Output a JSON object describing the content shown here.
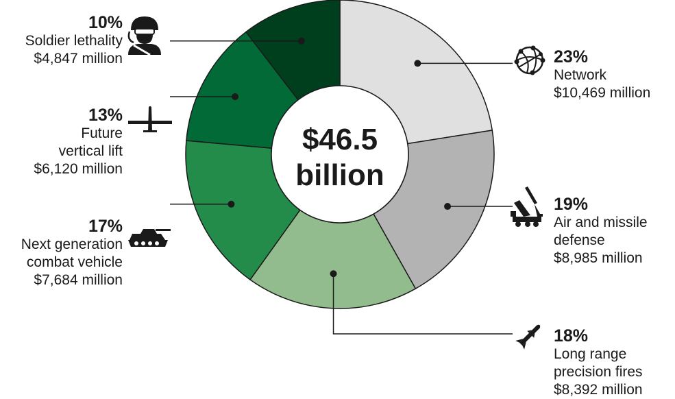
{
  "chart_data": {
    "type": "pie",
    "donut": true,
    "center_label": {
      "value": "$46.5",
      "unit": "billion"
    },
    "colors": [
      "#e0e0e0",
      "#b3b3b3",
      "#93bc8e",
      "#238c4a",
      "#026a36",
      "#003f1e"
    ],
    "series": [
      {
        "name": "Network",
        "percent": 23,
        "pct_label": "23%",
        "amount_millions": 10469,
        "amount_label": "$10,469 million",
        "name_lines": [
          "Network"
        ],
        "icon": "network-globe-icon"
      },
      {
        "name": "Air and missile defense",
        "percent": 19,
        "pct_label": "19%",
        "amount_millions": 8985,
        "amount_label": "$8,985 million",
        "name_lines": [
          "Air and missile",
          "defense"
        ],
        "icon": "missile-launcher-icon"
      },
      {
        "name": "Long range precision fires",
        "percent": 18,
        "pct_label": "18%",
        "amount_millions": 8392,
        "amount_label": "$8,392 million",
        "name_lines": [
          "Long range",
          "precision fires"
        ],
        "icon": "missile-icon"
      },
      {
        "name": "Next generation combat vehicle",
        "percent": 17,
        "pct_label": "17%",
        "amount_millions": 7684,
        "amount_label": "$7,684 million",
        "name_lines": [
          "Next generation",
          "combat vehicle"
        ],
        "icon": "tank-icon"
      },
      {
        "name": "Future vertical lift",
        "percent": 13,
        "pct_label": "13%",
        "amount_millions": 6120,
        "amount_label": "$6,120 million",
        "name_lines": [
          "Future",
          "vertical lift"
        ],
        "icon": "aircraft-icon"
      },
      {
        "name": "Soldier lethality",
        "percent": 10,
        "pct_label": "10%",
        "amount_millions": 4847,
        "amount_label": "$4,847 million",
        "name_lines": [
          "Soldier lethality"
        ],
        "icon": "soldier-icon"
      }
    ]
  }
}
